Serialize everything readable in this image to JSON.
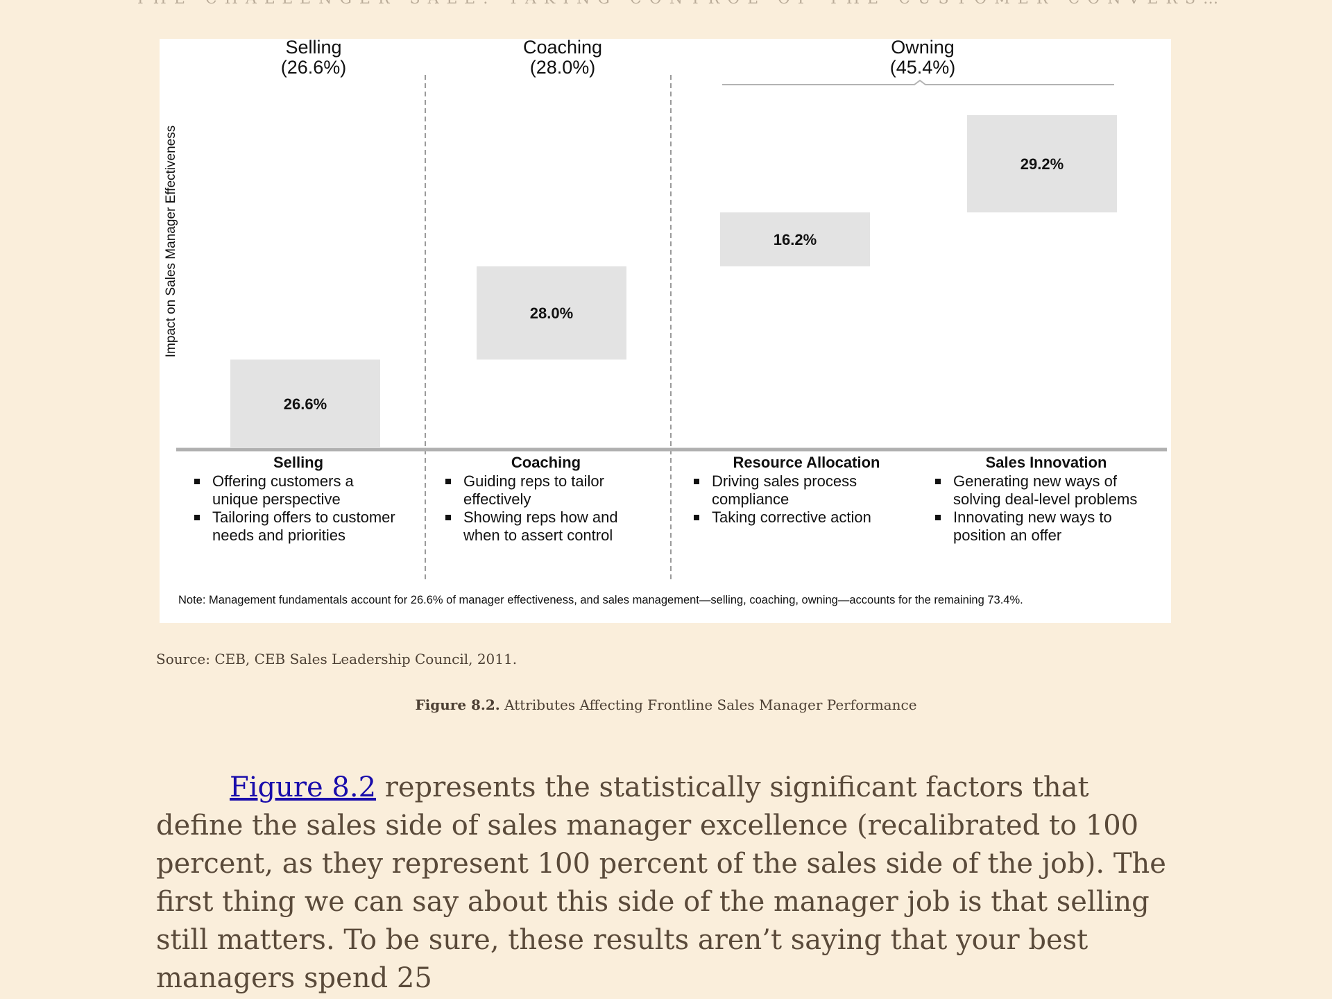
{
  "running_head": "THE CHALLENGER SALE: TAKING CONTROL OF THE CUSTOMER CONVERS…",
  "figure": {
    "group_heads": [
      {
        "name": "Selling",
        "pct": "(26.6%)"
      },
      {
        "name": "Coaching",
        "pct": "(28.0%)"
      },
      {
        "name": "Owning",
        "pct": "(45.4%)"
      }
    ],
    "y_axis_label": "Impact on Sales Manager Effectiveness",
    "categories": [
      {
        "title": "Selling",
        "bullets": [
          "Offering customers a unique perspective",
          "Tailoring offers to customer needs and priorities"
        ]
      },
      {
        "title": "Coaching",
        "bullets": [
          "Guiding reps to tailor effectively",
          "Showing reps how and when to assert control"
        ]
      },
      {
        "title": "Resource Allocation",
        "bullets": [
          "Driving sales process compliance",
          "Taking corrective action"
        ]
      },
      {
        "title": "Sales Innovation",
        "bullets": [
          "Generating new ways of solving deal-level problems",
          "Innovating new ways to position an offer"
        ]
      }
    ],
    "note": "Note: Management fundamentals account for 26.6% of manager effectiveness, and sales management—selling, coaching, owning—accounts for the remaining 73.4%."
  },
  "chart_data": {
    "type": "bar",
    "subtype": "waterfall",
    "categories": [
      "Selling",
      "Coaching",
      "Resource Allocation",
      "Sales Innovation"
    ],
    "values": [
      26.6,
      28.0,
      16.2,
      29.2
    ],
    "labels": [
      "26.6%",
      "28.0%",
      "16.2%",
      "29.2%"
    ],
    "ylabel": "Impact on Sales Manager Effectiveness",
    "ylim": [
      0,
      100
    ],
    "bar_color": "#e3e3e3"
  },
  "source": "Source: CEB, CEB Sales Leadership Council, 2011.",
  "caption": {
    "label": "Figure 8.2.",
    "text": "Attributes Affecting Frontline Sales Manager Performance"
  },
  "body": {
    "link_text": "Figure 8.2",
    "text": "represents the statistically significant factors that define the sales side of sales manager excellence (recalibrated to 100 percent, as they represent 100 percent of the sales side of the job). The first thing we can say about this side of the manager job is that selling still matters. To be sure, these results aren’t saying that your best managers spend 25"
  }
}
